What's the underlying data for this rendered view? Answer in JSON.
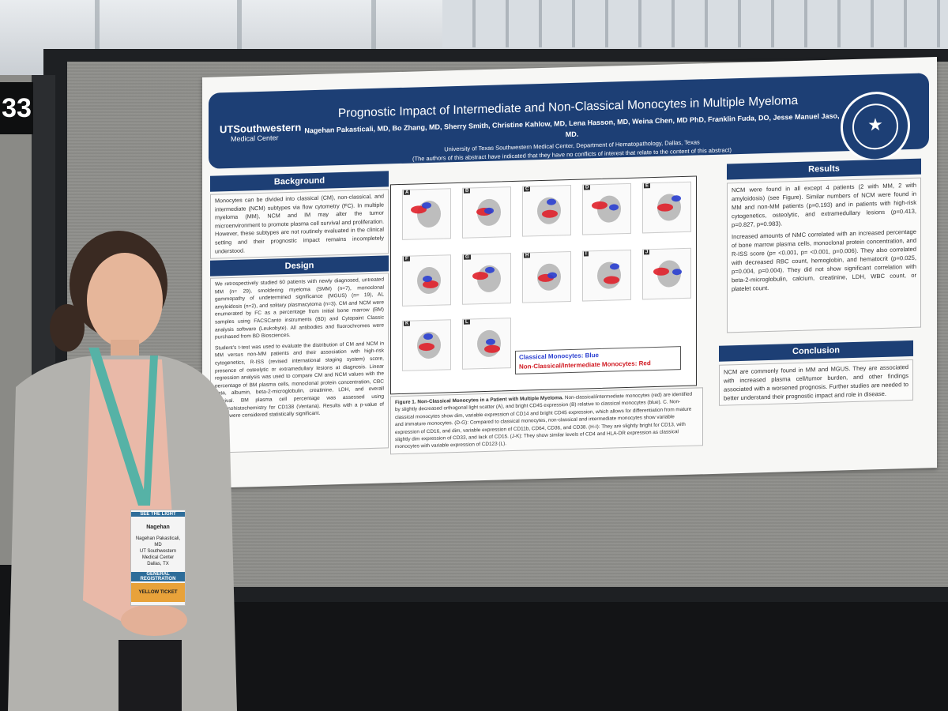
{
  "booth": {
    "number": "33"
  },
  "poster": {
    "institution_logo": {
      "line1": "UTSouthwestern",
      "line2": "Medical Center"
    },
    "title": "Prognostic Impact of Intermediate and Non-Classical Monocytes in Multiple Myeloma",
    "authors": "Nagehan Pakasticali, MD, Bo Zhang, MD, Sherry Smith, Christine Kahlow, MD, Lena Hasson, MD, Weina Chen, MD PhD, Franklin Fuda, DO, Jesse Manuel Jaso, MD.",
    "affiliation": "University of Texas Southwestern Medical Center,  Department of Hematopathology, Dallas, Texas",
    "disclosure": "(The authors of this abstract have indicated that they have no conflicts of interest that relate to the content of this abstract)",
    "seal_text": "THE UNIVERSITY OF TEXAS · SOUTHWESTERN MEDICAL CENTER",
    "sections": {
      "background": {
        "heading": "Background",
        "text": "Monocytes can be divided into classical (CM), non-classical, and intermediate (NCM) subtypes via flow cytometry (FC). In multiple myeloma (MM), NCM and IM may alter the tumor microenvironment to promote plasma cell survival and proliferation. However, these subtypes are not routinely evaluated in the clinical setting and their prognostic impact remains incompletely understood."
      },
      "design": {
        "heading": "Design",
        "text1": "We retrospectively studied 60 patients with newly diagnosed, untreated MM (n= 29), smoldering myeloma (SMM) (n=7), monoclonal gammopathy of undetermined significance (MGUS) (n= 19), AL amyloidosis (n=2), and solitary plasmacytoma (n=3). CM and NCM were enumerated by FC as a percentage from initial bone marrow (BM) samples using FACSCanto instruments (BD) and Cytopaint Classic analysis software (Leukobyte). All antibodies and fluorochromes were purchased from BD Biosciences.",
        "text2": "Student's t-test was used to evaluate the distribution of CM and NCM in MM versus non-MM patients and their association with high-risk cytogenetics, R-ISS (revised international staging system) score, presence of osteolytic or extramedullary lesions at diagnosis. Linear regression analysis was used to compare CM and NCM values with the percentage of BM plasma cells, monoclonal protein concentration, CBC data, albumin, beta-2-microglobulin, creatinine, LDH, and overall survival. BM plasma cell percentage was assessed using immunohistochemistry for CD138 (Ventana). Results with a p-value of ≤0.05 were considered statistically significant."
      },
      "results": {
        "heading": "Results",
        "text1": "NCM were found in all except 4 patients (2 with MM, 2 with amyloidosis) (see Figure). Similar numbers of NCM were found in MM and non-MM patients (p=0.193) and in patients with high-risk cytogenetics, osteolytic, and extramedullary lesions (p=0.413, p=0.827, p=0.983).",
        "text2": "Increased amounts of NMC correlated with an increased percentage of bone marrow plasma cells, monoclonal protein concentration, and R-ISS score (p= <0.001, p= <0.001, p=0.006). They also correlated with decreased RBC count, hemoglobin, and hematocrit (p=0.025, p=0.004, p=0.004). They did not show significant correlation with beta-2-microglobulin, calcium, creatinine, LDH, WBC count, or platelet count."
      },
      "conclusion": {
        "heading": "Conclusion",
        "text": "NCM are commonly found in MM and MGUS. They are associated with increased plasma cell/tumor burden, and other findings associated with a worsened prognosis. Further studies are needed to better understand their prognostic impact and role in disease."
      }
    },
    "figure": {
      "panels": [
        "A",
        "B",
        "C",
        "D",
        "E",
        "F",
        "G",
        "H",
        "I",
        "J",
        "K",
        "L"
      ],
      "legend_blue": "Classical Monocytes: Blue",
      "legend_red": "Non-Classical/Intermediate Monocytes: Red",
      "caption_title": "Figure 1. Non-Classical Monocytes in a Patient with Multiple Myeloma.",
      "caption_text": "Non-classical/intermediate monocytes (red) are identified by slightly decreased orthogonal light scatter (A), and bright CD45 expression (B) relative to classical monocytes (blue). C. Non-classical monocytes show dim, variable expression of CD14 and bright CD45 expression, which allows for differentiation from mature and immature monocytes. (D-G): Compared to classical monocytes, non-classical and intermediate monocytes show variable expression of CD16, and dim, variable expression of CD11b, CD64, CD36, and CD38. (H-I): They are slightly bright for CD13, with slightly dim expression of CD33, and lack of CD15. (J-K): They show similar levels of CD4 and HLA-DR expression as classical monocytes with variable expression of CD123 (L).",
      "colors": {
        "classical": "#2a3fd0",
        "nonclassical": "#e0202a",
        "events": "#8a8a8a"
      }
    }
  },
  "badge": {
    "event": "SEE THE LIGHT",
    "name": "Nagehan",
    "full_name": "Nagehan Pakasticali, MD",
    "org": "UT Southwestern Medical Center",
    "city": "Dallas, TX",
    "registration": "GENERAL REGISTRATION",
    "ticket": "YELLOW TICKET"
  }
}
